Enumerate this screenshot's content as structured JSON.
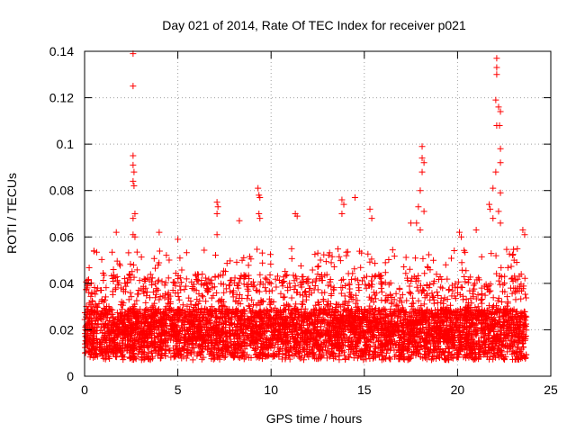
{
  "chart_data": {
    "type": "scatter",
    "title": "Day 021 of 2014, Rate Of TEC Index for receiver p021",
    "xlabel": "GPS time / hours",
    "ylabel": "ROTI / TECUs",
    "xlim": [
      0,
      25
    ],
    "ylim": [
      0,
      0.14
    ],
    "x_ticks": [
      0,
      5,
      10,
      15,
      20,
      25
    ],
    "x_tick_labels": [
      "0",
      "5",
      "10",
      "15",
      "20",
      "25"
    ],
    "y_ticks": [
      0,
      0.02,
      0.04,
      0.06,
      0.08,
      0.1,
      0.12,
      0.14
    ],
    "y_tick_labels": [
      "0",
      "0.02",
      "0.04",
      "0.06",
      "0.08",
      "0.1",
      "0.12",
      "0.14"
    ],
    "grid": true,
    "marker": "plus",
    "marker_color": "#ff0000",
    "data_range": {
      "x": [
        0,
        23.7
      ],
      "y": [
        0.004,
        0.139
      ]
    },
    "bulk": {
      "description_range_y": [
        0.005,
        0.045
      ],
      "typical_y": 0.018
    },
    "series": [
      {
        "name": "ROTI",
        "points": [
          {
            "x": 2.6,
            "y": 0.139
          },
          {
            "x": 2.6,
            "y": 0.125
          },
          {
            "x": 2.6,
            "y": 0.095
          },
          {
            "x": 2.6,
            "y": 0.091
          },
          {
            "x": 2.65,
            "y": 0.088
          },
          {
            "x": 2.6,
            "y": 0.084
          },
          {
            "x": 2.65,
            "y": 0.082
          },
          {
            "x": 2.7,
            "y": 0.07
          },
          {
            "x": 2.6,
            "y": 0.068
          },
          {
            "x": 2.6,
            "y": 0.061
          },
          {
            "x": 2.7,
            "y": 0.06
          },
          {
            "x": 22.1,
            "y": 0.137
          },
          {
            "x": 22.1,
            "y": 0.133
          },
          {
            "x": 22.1,
            "y": 0.13
          },
          {
            "x": 22.05,
            "y": 0.119
          },
          {
            "x": 22.2,
            "y": 0.116
          },
          {
            "x": 22.3,
            "y": 0.114
          },
          {
            "x": 22.1,
            "y": 0.108
          },
          {
            "x": 22.25,
            "y": 0.108
          },
          {
            "x": 22.3,
            "y": 0.098
          },
          {
            "x": 22.3,
            "y": 0.092
          },
          {
            "x": 22.05,
            "y": 0.088
          },
          {
            "x": 21.9,
            "y": 0.081
          },
          {
            "x": 22.3,
            "y": 0.079
          },
          {
            "x": 21.7,
            "y": 0.074
          },
          {
            "x": 21.75,
            "y": 0.072
          },
          {
            "x": 22.2,
            "y": 0.071
          },
          {
            "x": 21.9,
            "y": 0.068
          },
          {
            "x": 22.3,
            "y": 0.066
          },
          {
            "x": 18.1,
            "y": 0.099
          },
          {
            "x": 18.1,
            "y": 0.094
          },
          {
            "x": 18.2,
            "y": 0.092
          },
          {
            "x": 18.1,
            "y": 0.088
          },
          {
            "x": 18.0,
            "y": 0.08
          },
          {
            "x": 17.9,
            "y": 0.073
          },
          {
            "x": 18.2,
            "y": 0.071
          },
          {
            "x": 17.8,
            "y": 0.066
          },
          {
            "x": 18.0,
            "y": 0.063
          },
          {
            "x": 9.3,
            "y": 0.081
          },
          {
            "x": 9.35,
            "y": 0.078
          },
          {
            "x": 9.4,
            "y": 0.077
          },
          {
            "x": 9.35,
            "y": 0.07
          },
          {
            "x": 9.4,
            "y": 0.068
          },
          {
            "x": 7.1,
            "y": 0.075
          },
          {
            "x": 7.15,
            "y": 0.073
          },
          {
            "x": 7.1,
            "y": 0.07
          },
          {
            "x": 7.1,
            "y": 0.061
          },
          {
            "x": 8.3,
            "y": 0.067
          },
          {
            "x": 11.3,
            "y": 0.07
          },
          {
            "x": 11.4,
            "y": 0.069
          },
          {
            "x": 13.8,
            "y": 0.076
          },
          {
            "x": 13.9,
            "y": 0.074
          },
          {
            "x": 13.8,
            "y": 0.07
          },
          {
            "x": 14.5,
            "y": 0.077
          },
          {
            "x": 15.3,
            "y": 0.072
          },
          {
            "x": 15.4,
            "y": 0.068
          },
          {
            "x": 17.5,
            "y": 0.066
          },
          {
            "x": 20.2,
            "y": 0.06
          },
          {
            "x": 20.1,
            "y": 0.062
          },
          {
            "x": 21.0,
            "y": 0.063
          },
          {
            "x": 23.5,
            "y": 0.063
          },
          {
            "x": 23.6,
            "y": 0.061
          },
          {
            "x": 4.0,
            "y": 0.062
          },
          {
            "x": 5.0,
            "y": 0.059
          },
          {
            "x": 1.7,
            "y": 0.062
          },
          {
            "x": 0.5,
            "y": 0.054
          }
        ]
      }
    ]
  }
}
